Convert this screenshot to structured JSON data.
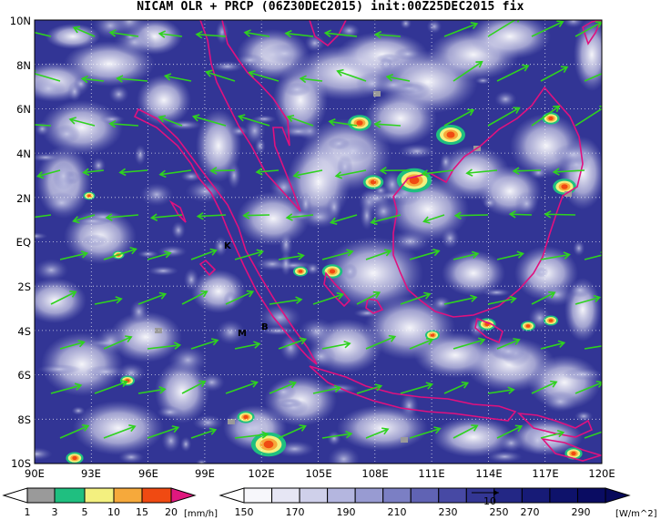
{
  "title": "NICAM OLR + PRCP (06Z30DEC2015) init:00Z25DEC2015 fix",
  "map": {
    "lat_labels": [
      "10N",
      "8N",
      "6N",
      "4N",
      "2N",
      "EQ",
      "2S",
      "4S",
      "6S",
      "8S",
      "10S"
    ],
    "lon_labels": [
      "90E",
      "93E",
      "96E",
      "99E",
      "102E",
      "105E",
      "108E",
      "111E",
      "114E",
      "117E",
      "120E"
    ],
    "place_labels": [
      "K",
      "M",
      "B"
    ],
    "grid": true,
    "coastline_color": "#e0117f",
    "wind_vector_color": "#2fd21f",
    "background_color": "#2b2f8f"
  },
  "precip_colorbar": {
    "ticks": [
      "1",
      "3",
      "5",
      "10",
      "15",
      "20"
    ],
    "unit": "[mm/h]",
    "colors": [
      "#9a9a9a",
      "#1fbf80",
      "#f3f07f",
      "#f6a93b",
      "#f04a12",
      "#e0187e"
    ]
  },
  "olr_colorbar": {
    "ticks": [
      "150",
      "170",
      "190",
      "210",
      "230",
      "250",
      "270",
      "290"
    ],
    "unit": "[W/m^2]",
    "vector_ref": "10",
    "colors": [
      "#f7f7fb",
      "#e6e6f4",
      "#cfd0ea",
      "#b4b6df",
      "#989bd2",
      "#7b7fc4",
      "#6063b4",
      "#4749a4",
      "#333694",
      "#232785",
      "#171b77",
      "#0e126b",
      "#0a0c62"
    ]
  }
}
